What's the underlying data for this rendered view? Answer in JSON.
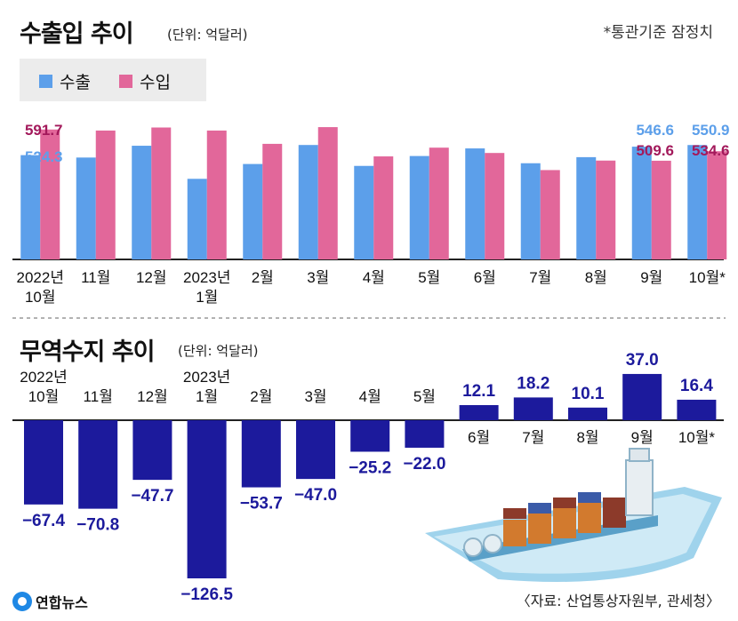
{
  "header": {
    "title": "수출입 추이",
    "unit": "(단위: 억달러)",
    "note": "*통관기준 잠정치"
  },
  "legend": {
    "export_label": "수출",
    "import_label": "수입"
  },
  "trade_title": "무역수지 추이",
  "trade_unit": "(단위: 억달러)",
  "source": "〈자료: 산업통상자원부, 관세청〉",
  "logo_text": "연합뉴스",
  "colors": {
    "export": "#5c9fea",
    "import": "#e2679a",
    "balance": "#1c1a9c",
    "import_label": "#a3195b",
    "export_label": "#5c9fea"
  },
  "chart_data": [
    {
      "type": "bar",
      "title": "수출입 추이",
      "categories": [
        "2022년 10월",
        "11월",
        "12월",
        "2023년 1월",
        "2월",
        "3월",
        "4월",
        "5월",
        "6월",
        "7월",
        "8월",
        "9월",
        "10월*"
      ],
      "series": [
        {
          "name": "수출",
          "values": [
            524.3,
            518.0,
            549.0,
            462.0,
            501.0,
            551.0,
            496.0,
            522.0,
            542.0,
            503.0,
            519.0,
            546.6,
            550.9
          ]
        },
        {
          "name": "수입",
          "values": [
            591.7,
            589.0,
            597.0,
            589.0,
            554.0,
            598.0,
            521.0,
            544.0,
            530.0,
            485.0,
            510.0,
            509.6,
            534.6
          ]
        }
      ],
      "data_labels": [
        {
          "series": "수출",
          "index": 0,
          "text": "524.3"
        },
        {
          "series": "수입",
          "index": 0,
          "text": "591.7"
        },
        {
          "series": "수출",
          "index": 11,
          "text": "546.6"
        },
        {
          "series": "수입",
          "index": 11,
          "text": "509.6"
        },
        {
          "series": "수출",
          "index": 12,
          "text": "550.9"
        },
        {
          "series": "수입",
          "index": 12,
          "text": "534.6"
        }
      ],
      "ylim": [
        250,
        680
      ]
    },
    {
      "type": "bar",
      "title": "무역수지 추이",
      "categories": [
        "2022년 10월",
        "11월",
        "12월",
        "2023년 1월",
        "2월",
        "3월",
        "4월",
        "5월",
        "6월",
        "7월",
        "8월",
        "9월",
        "10월*"
      ],
      "values": [
        -67.4,
        -70.8,
        -47.7,
        -126.5,
        -53.7,
        -47.0,
        -25.2,
        -22.0,
        12.1,
        18.2,
        10.1,
        37.0,
        16.4
      ],
      "labels": [
        "−67.4",
        "−70.8",
        "−47.7",
        "−126.5",
        "−53.7",
        "−47.0",
        "−25.2",
        "−22.0",
        "12.1",
        "18.2",
        "10.1",
        "37.0",
        "16.4"
      ],
      "ylim": [
        -126.5,
        37.0
      ]
    }
  ]
}
